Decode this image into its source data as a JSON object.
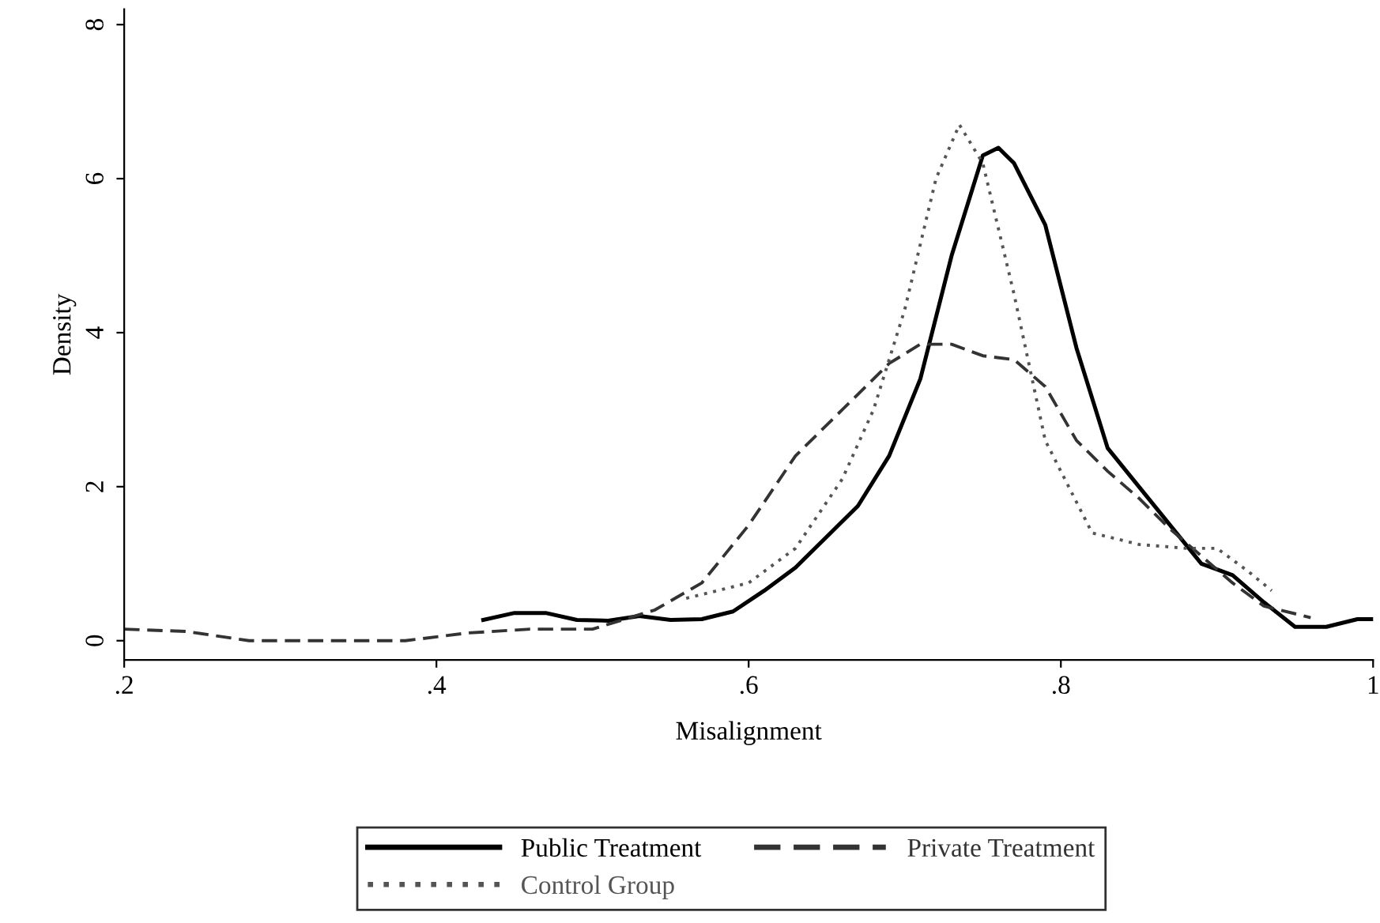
{
  "chart_data": {
    "type": "line",
    "xlabel": "Misalignment",
    "ylabel": "Density",
    "xlim": [
      0.2,
      1.0
    ],
    "ylim": [
      -0.25,
      8.2
    ],
    "xticks": [
      {
        "value": 0.2,
        "label": ".2"
      },
      {
        "value": 0.4,
        "label": ".4"
      },
      {
        "value": 0.6,
        "label": ".6"
      },
      {
        "value": 0.8,
        "label": ".8"
      },
      1
    ],
    "yticks": [
      0,
      2,
      4,
      6,
      8
    ],
    "grid": false,
    "legend": "bottom",
    "series": [
      {
        "name": "Public Treatment",
        "color": "#000000",
        "line_style": "solid",
        "x": [
          0.43,
          0.45,
          0.47,
          0.49,
          0.51,
          0.53,
          0.55,
          0.57,
          0.59,
          0.61,
          0.63,
          0.65,
          0.67,
          0.69,
          0.71,
          0.73,
          0.75,
          0.76,
          0.77,
          0.79,
          0.81,
          0.83,
          0.85,
          0.87,
          0.89,
          0.91,
          0.93,
          0.95,
          0.97,
          0.99,
          1.0
        ],
        "values": [
          0.27,
          0.36,
          0.36,
          0.27,
          0.26,
          0.32,
          0.27,
          0.28,
          0.38,
          0.65,
          0.95,
          1.35,
          1.75,
          2.4,
          3.4,
          5.0,
          6.3,
          6.4,
          6.2,
          5.4,
          3.8,
          2.5,
          2.0,
          1.5,
          1.0,
          0.85,
          0.5,
          0.18,
          0.18,
          0.28,
          0.28
        ]
      },
      {
        "name": "Private Treatment",
        "color": "#333333",
        "line_style": "dashed",
        "x": [
          0.2,
          0.24,
          0.28,
          0.32,
          0.38,
          0.42,
          0.46,
          0.5,
          0.54,
          0.57,
          0.6,
          0.63,
          0.66,
          0.69,
          0.71,
          0.73,
          0.75,
          0.77,
          0.79,
          0.81,
          0.83,
          0.85,
          0.87,
          0.89,
          0.91,
          0.93,
          0.96
        ],
        "values": [
          0.15,
          0.12,
          0.0,
          0.0,
          0.0,
          0.1,
          0.15,
          0.15,
          0.4,
          0.75,
          1.5,
          2.4,
          3.0,
          3.6,
          3.85,
          3.85,
          3.7,
          3.65,
          3.3,
          2.6,
          2.2,
          1.85,
          1.45,
          1.1,
          0.75,
          0.45,
          0.3
        ]
      },
      {
        "name": "Control Group",
        "color": "#555555",
        "line_style": "dotted",
        "x": [
          0.56,
          0.6,
          0.63,
          0.66,
          0.68,
          0.7,
          0.72,
          0.735,
          0.75,
          0.77,
          0.79,
          0.82,
          0.85,
          0.88,
          0.9,
          0.92,
          0.935
        ],
        "values": [
          0.55,
          0.75,
          1.2,
          2.1,
          3.0,
          4.3,
          6.0,
          6.7,
          6.2,
          4.5,
          2.6,
          1.4,
          1.25,
          1.2,
          1.2,
          0.9,
          0.65
        ]
      }
    ]
  }
}
